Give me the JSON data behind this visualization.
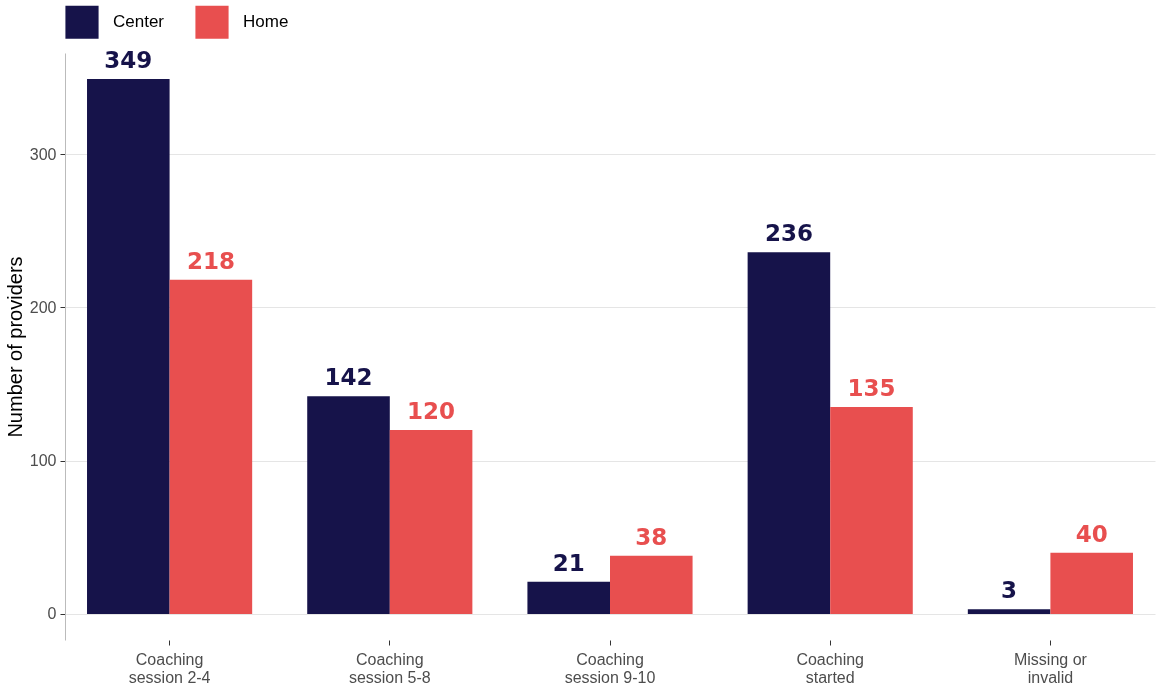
{
  "chart_data": {
    "type": "bar",
    "ylabel": "Number of providers",
    "categories": [
      "Coaching\nsession 2-4",
      "Coaching\nsession 5-8",
      "Coaching\nsession 9-10",
      "Coaching\nstarted",
      "Missing or\ninvalid"
    ],
    "series": [
      {
        "name": "Center",
        "color": "#16134a",
        "values": [
          349,
          142,
          21,
          236,
          3
        ]
      },
      {
        "name": "Home",
        "color": "#e84f4f",
        "values": [
          218,
          120,
          38,
          135,
          40
        ]
      }
    ],
    "ylim": [
      -17,
      366
    ],
    "yticks": [
      0,
      100,
      200,
      300
    ],
    "grid": "y",
    "legend": "top left",
    "data_labels": true
  }
}
